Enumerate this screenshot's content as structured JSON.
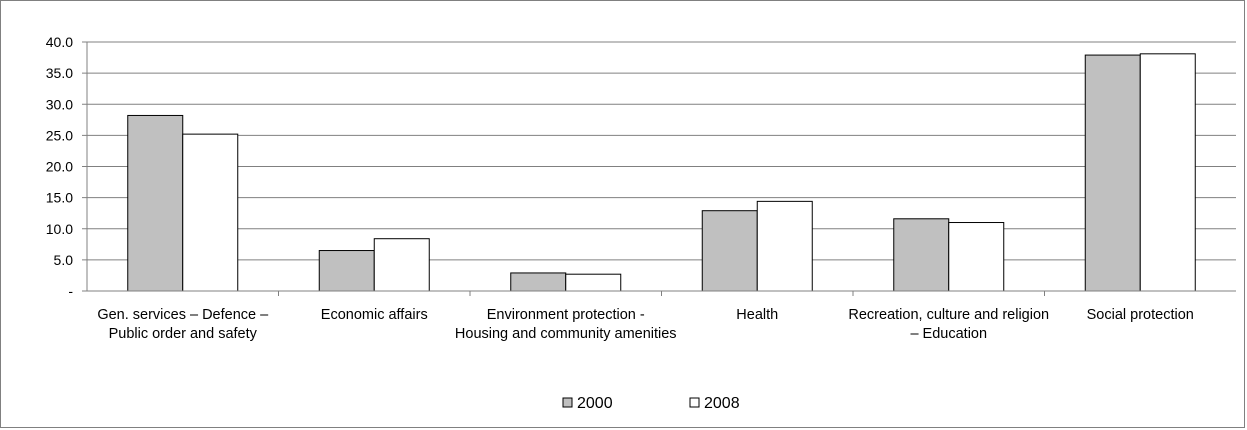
{
  "chart_data": {
    "type": "bar",
    "title": "",
    "xlabel": "",
    "ylabel": "",
    "ylim": [
      0,
      40
    ],
    "yticks": [
      "-",
      "5.0",
      "10.0",
      "15.0",
      "20.0",
      "25.0",
      "30.0",
      "35.0",
      "40.0"
    ],
    "grid": true,
    "legend_position": "bottom-center",
    "categories": [
      [
        "Gen. services – Defence –",
        "Public order and safety"
      ],
      [
        "Economic affairs"
      ],
      [
        "Environment protection -",
        "Housing and community amenities"
      ],
      [
        "Health"
      ],
      [
        "Recreation, culture and religion",
        "– Education"
      ],
      [
        "Social protection"
      ]
    ],
    "series": [
      {
        "name": "2000",
        "color": "#c0c0c0",
        "values": [
          28.2,
          6.5,
          2.9,
          12.9,
          11.6,
          37.9
        ]
      },
      {
        "name": "2008",
        "color": "#ffffff",
        "values": [
          25.2,
          8.4,
          2.7,
          14.4,
          11.0,
          38.1
        ]
      }
    ]
  }
}
